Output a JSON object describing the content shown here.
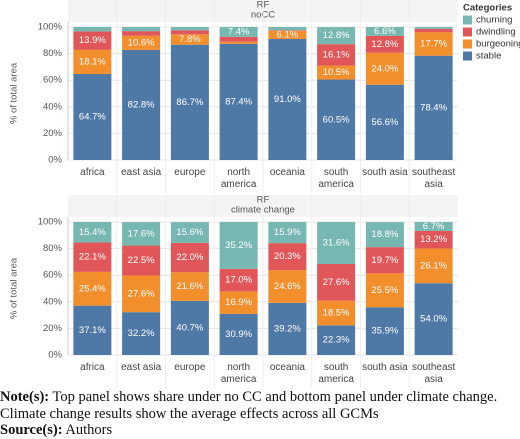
{
  "legend": {
    "title": "Categories"
  },
  "chart_data": [
    {
      "type": "stacked_bar",
      "title": "RF",
      "subtitle": "noCC",
      "ylabel": "% of total area",
      "categories": [
        "africa",
        "east asia",
        "europe",
        "north america",
        "oceania",
        "south america",
        "south asia",
        "southeast asia"
      ],
      "ylim": [
        0,
        100
      ],
      "yticks": [
        {
          "value": 0,
          "label": "0%"
        },
        {
          "value": 20,
          "label": "20%"
        },
        {
          "value": 40,
          "label": "40%"
        },
        {
          "value": 60,
          "label": "60%"
        },
        {
          "value": 80,
          "label": "80%"
        },
        {
          "value": 100,
          "label": "100%"
        }
      ],
      "grid": true,
      "series": [
        {
          "name": "stable",
          "color": "#4e79a7",
          "values": [
            64.7,
            82.8,
            86.7,
            87.4,
            91.0,
            60.5,
            56.6,
            78.4
          ],
          "value_labels": [
            "64.7%",
            "82.8%",
            "86.7%",
            "87.4%",
            "91.0%",
            "60.5%",
            "56.6%",
            "78.4%"
          ]
        },
        {
          "name": "burgeoning",
          "color": "#f28e2b",
          "values": [
            18.1,
            10.6,
            7.8,
            1.5,
            6.1,
            10.5,
            24.0,
            17.7
          ],
          "value_labels": [
            "18.1%",
            "10.6%",
            "7.8%",
            null,
            "6.1%",
            "10.5%",
            "24.0%",
            "17.7%"
          ]
        },
        {
          "name": "dwindling",
          "color": "#e15759",
          "values": [
            13.9,
            3.5,
            3.0,
            3.7,
            0.5,
            16.1,
            12.8,
            2.5
          ],
          "value_labels": [
            "13.9%",
            null,
            null,
            null,
            null,
            "16.1%",
            "12.8%",
            null
          ]
        },
        {
          "name": "churning",
          "color": "#76b7b2",
          "values": [
            3.3,
            3.1,
            2.5,
            7.4,
            2.4,
            12.8,
            6.6,
            1.4
          ],
          "value_labels": [
            null,
            null,
            null,
            "7.4%",
            null,
            "12.8%",
            "6.6%",
            null
          ]
        }
      ]
    },
    {
      "type": "stacked_bar",
      "title": "RF",
      "subtitle": "climate change",
      "ylabel": "% of total area",
      "categories": [
        "africa",
        "east asia",
        "europe",
        "north america",
        "oceania",
        "south america",
        "south asia",
        "southeast asia"
      ],
      "ylim": [
        0,
        100
      ],
      "yticks": [
        {
          "value": 0,
          "label": "0%"
        },
        {
          "value": 20,
          "label": "20%"
        },
        {
          "value": 40,
          "label": "40%"
        },
        {
          "value": 60,
          "label": "60%"
        },
        {
          "value": 80,
          "label": "80%"
        },
        {
          "value": 100,
          "label": "100%"
        }
      ],
      "grid": true,
      "series": [
        {
          "name": "stable",
          "color": "#4e79a7",
          "values": [
            37.1,
            32.2,
            40.7,
            30.9,
            39.2,
            22.3,
            35.9,
            54.0
          ],
          "value_labels": [
            "37.1%",
            "32.2%",
            "40.7%",
            "30.9%",
            "39.2%",
            "22.3%",
            "35.9%",
            "54.0%"
          ]
        },
        {
          "name": "burgeoning",
          "color": "#f28e2b",
          "values": [
            25.4,
            27.6,
            21.6,
            16.9,
            24.6,
            18.5,
            25.5,
            26.1
          ],
          "value_labels": [
            "25.4%",
            "27.6%",
            "21.6%",
            "16.9%",
            "24.6%",
            "18.5%",
            "25.5%",
            "26.1%"
          ]
        },
        {
          "name": "dwindling",
          "color": "#e15759",
          "values": [
            22.1,
            22.5,
            22.0,
            17.0,
            20.3,
            27.6,
            19.7,
            13.2
          ],
          "value_labels": [
            "22.1%",
            "22.5%",
            "22.0%",
            "17.0%",
            "20.3%",
            "27.6%",
            "19.7%",
            "13.2%"
          ]
        },
        {
          "name": "churning",
          "color": "#76b7b2",
          "values": [
            15.4,
            17.6,
            15.6,
            35.2,
            15.9,
            31.6,
            18.8,
            6.7
          ],
          "value_labels": [
            "15.4%",
            "17.6%",
            "15.6%",
            "35.2%",
            "15.9%",
            "31.6%",
            "18.8%",
            "6.7%"
          ]
        }
      ]
    }
  ],
  "note": {
    "label": "Note(s):",
    "text": " Top panel shows share under no CC and bottom panel under climate change. Climate change results show the average effects across all GCMs"
  },
  "source": {
    "label": "Source(s):",
    "text": " Authors"
  }
}
